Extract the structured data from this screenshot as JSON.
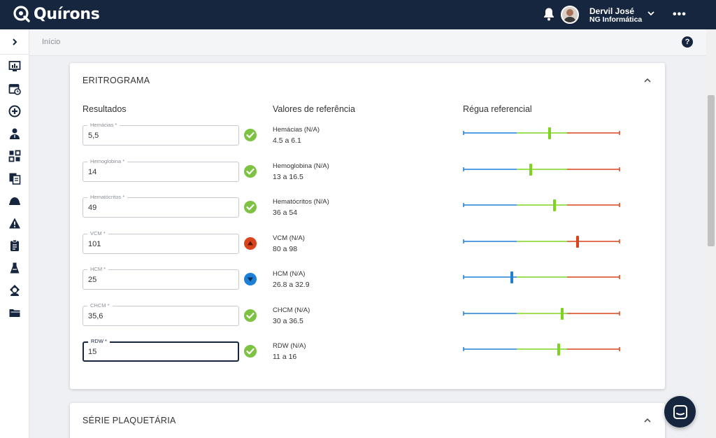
{
  "app": {
    "logo_text": "Quírons"
  },
  "user": {
    "name": "Dervil José",
    "org": "NG Informática"
  },
  "header": {
    "more_label": "•••"
  },
  "breadcrumb": {
    "label": "Início"
  },
  "help": {
    "label": "?"
  },
  "sidebar": {
    "icons": [
      "dashboard-icon",
      "calendar-clock-icon",
      "plus-circle-icon",
      "doctor-icon",
      "puzzle-icon",
      "documents-icon",
      "helmet-icon",
      "warning-icon",
      "clipboard-icon",
      "flask-icon",
      "nurse-icon",
      "folder-icon"
    ]
  },
  "card": {
    "title": "ERITROGRAMA",
    "col_results": "Resultados",
    "col_reference": "Valores de referência",
    "col_ruler": "Régua referencial",
    "rows": [
      {
        "label": "Hemácias *",
        "value": "5,5",
        "status": "ok",
        "ref_name": "Hemácias (N/A)",
        "ref_range": "4.5 a 6.1",
        "marker": 0.55,
        "marker_color": "#7ed321"
      },
      {
        "label": "Hemoglobina *",
        "value": "14",
        "status": "ok",
        "ref_name": "Hemoglobina (N/A)",
        "ref_range": "13 a 16.5",
        "marker": 0.43,
        "marker_color": "#7ed321"
      },
      {
        "label": "Hematócritos *",
        "value": "49",
        "status": "ok",
        "ref_name": "Hematócritos (N/A)",
        "ref_range": "36 a 54",
        "marker": 0.58,
        "marker_color": "#7ed321"
      },
      {
        "label": "VCM *",
        "value": "101",
        "status": "high",
        "ref_name": "VCM (N/A)",
        "ref_range": "80 a 98",
        "marker": 0.73,
        "marker_color": "#d9441c"
      },
      {
        "label": "HCM *",
        "value": "25",
        "status": "low",
        "ref_name": "HCM (N/A)",
        "ref_range": "26.8 a 32.9",
        "marker": 0.31,
        "marker_color": "#1e7fd6"
      },
      {
        "label": "CHCM *",
        "value": "35,6",
        "status": "ok",
        "ref_name": "CHCM (N/A)",
        "ref_range": "30 a 36.5",
        "marker": 0.63,
        "marker_color": "#7ed321"
      },
      {
        "label": "RDW *",
        "value": "15",
        "status": "ok",
        "ref_name": "RDW (N/A)",
        "ref_range": "11 a 16",
        "marker": 0.61,
        "marker_color": "#7ed321"
      }
    ]
  },
  "card2": {
    "title": "SÉRIE PLAQUETÁRIA"
  },
  "colors": {
    "ok": "#7dc242",
    "high": "#d9441c",
    "low": "#1e7fd6",
    "ruler_low": "#1e7fd6",
    "ruler_normal": "#7ed321",
    "ruler_high": "#d9441c"
  }
}
